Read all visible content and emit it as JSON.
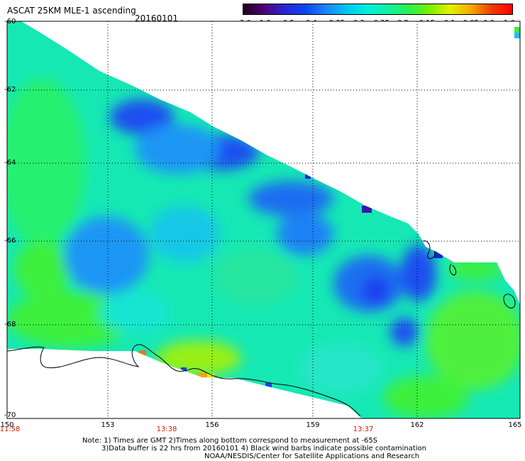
{
  "title": {
    "product": "ASCAT 25KM MLE-1 ascending",
    "date": "20160101"
  },
  "colorbar": {
    "labels": [
      "-3.0",
      "-1.0",
      "-0.5",
      "-0.4",
      "-0.35",
      "-0.3",
      "-0.25",
      "-0.2",
      "-0.15",
      "-0.1",
      "-0.05",
      "0.0",
      "1.0"
    ],
    "stops": [
      "#200018",
      "#500078",
      "#2828d2",
      "#0a46f0",
      "#1e82f5",
      "#00c8f0",
      "#00f0dc",
      "#14f0a0",
      "#28f050",
      "#78f000",
      "#e6f000",
      "#f5aa00",
      "#f03c00",
      "#ff0000"
    ]
  },
  "axes": {
    "lat_labels": [
      "-60",
      "-62",
      "-64",
      "-66",
      "-68",
      "-70"
    ],
    "lon_labels": [
      "150",
      "153",
      "156",
      "159",
      "162",
      "165"
    ],
    "time_labels": [
      "11:58",
      "13:38",
      "13:37"
    ]
  },
  "map": {
    "lat_range": [
      -70,
      -60
    ],
    "lon_range": [
      150,
      165
    ],
    "grid_lines": true,
    "colors": {
      "coast": "#000000",
      "grid": "#000000"
    }
  },
  "notes": [
    "Note: 1) Times are GMT 2)Times along bottom correspond to measurement at -65S",
    "3)Data buffer is 22 hrs from 20160101 4) Black wind barbs indicate possible contamination",
    "NOAA/NESDIS/Center for Satellite Applications and Research"
  ]
}
